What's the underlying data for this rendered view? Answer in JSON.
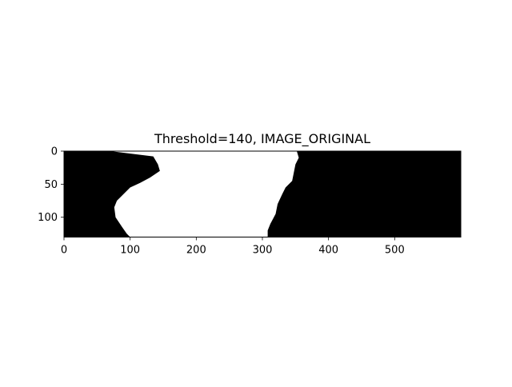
{
  "figure": {
    "title": "Threshold=140, IMAGE_ORIGINAL",
    "image_kind": "binary-threshold-mask",
    "colors": {
      "foreground": "#000000",
      "background": "#ffffff"
    }
  },
  "axes": {
    "x_range": [
      0,
      600
    ],
    "y_range": [
      0,
      130
    ],
    "y_inverted": true,
    "x_ticks": [
      {
        "value": 0,
        "label": "0"
      },
      {
        "value": 100,
        "label": "100"
      },
      {
        "value": 200,
        "label": "200"
      },
      {
        "value": 300,
        "label": "300"
      },
      {
        "value": 400,
        "label": "400"
      },
      {
        "value": 500,
        "label": "500"
      }
    ],
    "y_ticks": [
      {
        "value": 0,
        "label": "0"
      },
      {
        "value": 50,
        "label": "50"
      },
      {
        "value": 100,
        "label": "100"
      }
    ]
  },
  "mask": {
    "left_white_edge": [
      [
        0,
        70
      ],
      [
        8,
        135
      ],
      [
        20,
        142
      ],
      [
        30,
        145
      ],
      [
        40,
        130
      ],
      [
        48,
        115
      ],
      [
        55,
        100
      ],
      [
        65,
        90
      ],
      [
        75,
        80
      ],
      [
        85,
        76
      ],
      [
        100,
        78
      ],
      [
        115,
        88
      ],
      [
        125,
        95
      ],
      [
        130,
        100
      ]
    ],
    "right_white_edge": [
      [
        0,
        352
      ],
      [
        10,
        355
      ],
      [
        20,
        350
      ],
      [
        30,
        348
      ],
      [
        45,
        345
      ],
      [
        55,
        335
      ],
      [
        65,
        330
      ],
      [
        80,
        323
      ],
      [
        95,
        320
      ],
      [
        110,
        312
      ],
      [
        120,
        308
      ],
      [
        130,
        308
      ]
    ]
  }
}
